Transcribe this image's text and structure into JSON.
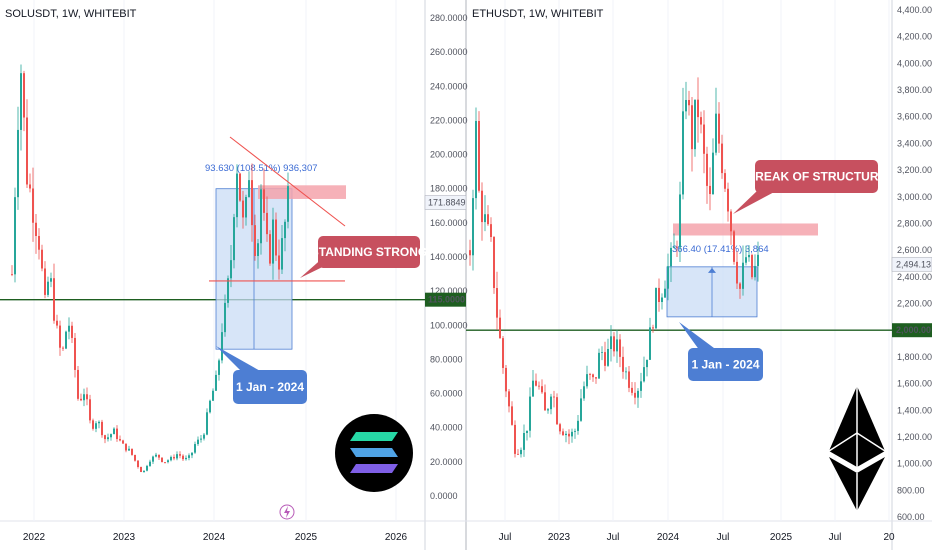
{
  "colors": {
    "up": "#26a69a",
    "down": "#ef5350",
    "support": "#1e5e20",
    "callout_red": "#c7505f",
    "callout_blue": "#4d7ed3",
    "zone_red": "#f5a3ac",
    "box_blue": "#c9dcf6",
    "box_border": "#4d7ed3",
    "measure_text": "#3b6bd4"
  },
  "chart_data": [
    {
      "type": "candlestick",
      "title": "SOLUSDT, 1W, WHITEBIT",
      "ylim": [
        -10,
        290
      ],
      "y_ticks": [
        "280.0000",
        "260.0000",
        "240.0000",
        "220.0000",
        "200.0000",
        "180.0000",
        "160.0000",
        "140.0000",
        "120.0000",
        "100.0000",
        "80.0000",
        "60.0000",
        "40.0000",
        "20.0000",
        "0.0000"
      ],
      "x_ticks": [
        "2022",
        "2023",
        "2024",
        "2025",
        "2026"
      ],
      "price_label": "171.8849",
      "price_value": 171.8849,
      "support_label": "115.0000",
      "support_value": 115,
      "path": [
        [
          0,
          130
        ],
        [
          2,
          200
        ],
        [
          4,
          258
        ],
        [
          7,
          190
        ],
        [
          10,
          170
        ],
        [
          13,
          150
        ],
        [
          16,
          110
        ],
        [
          18,
          132
        ],
        [
          21,
          100
        ],
        [
          24,
          80
        ],
        [
          27,
          105
        ],
        [
          30,
          78
        ],
        [
          32,
          55
        ],
        [
          35,
          62
        ],
        [
          38,
          40
        ],
        [
          41,
          45
        ],
        [
          45,
          33
        ],
        [
          49,
          38
        ],
        [
          53,
          30
        ],
        [
          57,
          26
        ],
        [
          60,
          19
        ],
        [
          63,
          13
        ],
        [
          66,
          21
        ],
        [
          70,
          24
        ],
        [
          73,
          20
        ],
        [
          77,
          22
        ],
        [
          80,
          25
        ],
        [
          83,
          21
        ],
        [
          86,
          23
        ],
        [
          88,
          30
        ],
        [
          92,
          35
        ],
        [
          96,
          58
        ],
        [
          99,
          70
        ],
        [
          101,
          98
        ],
        [
          103,
          110
        ],
        [
          106,
          145
        ],
        [
          108,
          200
        ],
        [
          110,
          175
        ],
        [
          112,
          150
        ],
        [
          114,
          195
        ],
        [
          116,
          160
        ],
        [
          118,
          140
        ],
        [
          120,
          180
        ],
        [
          122,
          150
        ],
        [
          124,
          140
        ],
        [
          126,
          160
        ],
        [
          128,
          135
        ],
        [
          130,
          145
        ],
        [
          133,
          172
        ]
      ],
      "annotations": {
        "callout_1": "STANDING STRONG",
        "callout_2": "1 Jan - 2024",
        "measure": "93.630 (108.51%) 936,307"
      }
    },
    {
      "type": "candlestick",
      "title": "ETHUSDT, 1W, WHITEBIT",
      "ylim": [
        560,
        4450
      ],
      "y_ticks": [
        "4,400.00",
        "4,200.00",
        "4,000.00",
        "3,800.00",
        "3,600.00",
        "3,400.00",
        "3,200.00",
        "3,000.00",
        "2,800.00",
        "2,600.00",
        "2,400.00",
        "2,200.00",
        "1,800.00",
        "1,600.00",
        "1,400.00",
        "1,200.00",
        "1,000.00",
        "800.00",
        "600.00"
      ],
      "x_ticks": [
        "Jul",
        "2023",
        "Jul",
        "2024",
        "Jul",
        "2025",
        "Jul",
        "20"
      ],
      "price_label": "2,494.13",
      "price_value": 2494.13,
      "support_label": "2,000.00",
      "support_value": 2000,
      "path": [
        [
          0,
          2600
        ],
        [
          1,
          3100
        ],
        [
          2,
          3500
        ],
        [
          3,
          3000
        ],
        [
          5,
          2800
        ],
        [
          7,
          2600
        ],
        [
          9,
          2100
        ],
        [
          11,
          1700
        ],
        [
          13,
          1400
        ],
        [
          15,
          1100
        ],
        [
          17,
          1150
        ],
        [
          19,
          1300
        ],
        [
          21,
          1650
        ],
        [
          23,
          1550
        ],
        [
          25,
          1350
        ],
        [
          27,
          1600
        ],
        [
          29,
          1300
        ],
        [
          31,
          1250
        ],
        [
          33,
          1200
        ],
        [
          35,
          1260
        ],
        [
          37,
          1550
        ],
        [
          39,
          1650
        ],
        [
          41,
          1600
        ],
        [
          43,
          1850
        ],
        [
          45,
          1800
        ],
        [
          47,
          1900
        ],
        [
          49,
          1850
        ],
        [
          51,
          1700
        ],
        [
          53,
          1600
        ],
        [
          55,
          1550
        ],
        [
          57,
          1700
        ],
        [
          59,
          1900
        ],
        [
          61,
          2200
        ],
        [
          63,
          2300
        ],
        [
          65,
          2450
        ],
        [
          67,
          2550
        ],
        [
          69,
          2800
        ],
        [
          71,
          3900
        ],
        [
          73,
          3400
        ],
        [
          75,
          3700
        ],
        [
          77,
          3300
        ],
        [
          79,
          2900
        ],
        [
          81,
          3550
        ],
        [
          83,
          3300
        ],
        [
          85,
          3000
        ],
        [
          87,
          2600
        ],
        [
          89,
          2300
        ],
        [
          91,
          2550
        ],
        [
          93,
          2400
        ],
        [
          95,
          2500
        ]
      ],
      "annotations": {
        "callout_1": "BREAK OF STRUCTURE",
        "callout_2": "1 Jan - 2024",
        "measure": "366.40 (17.41%) 3,864"
      }
    }
  ]
}
